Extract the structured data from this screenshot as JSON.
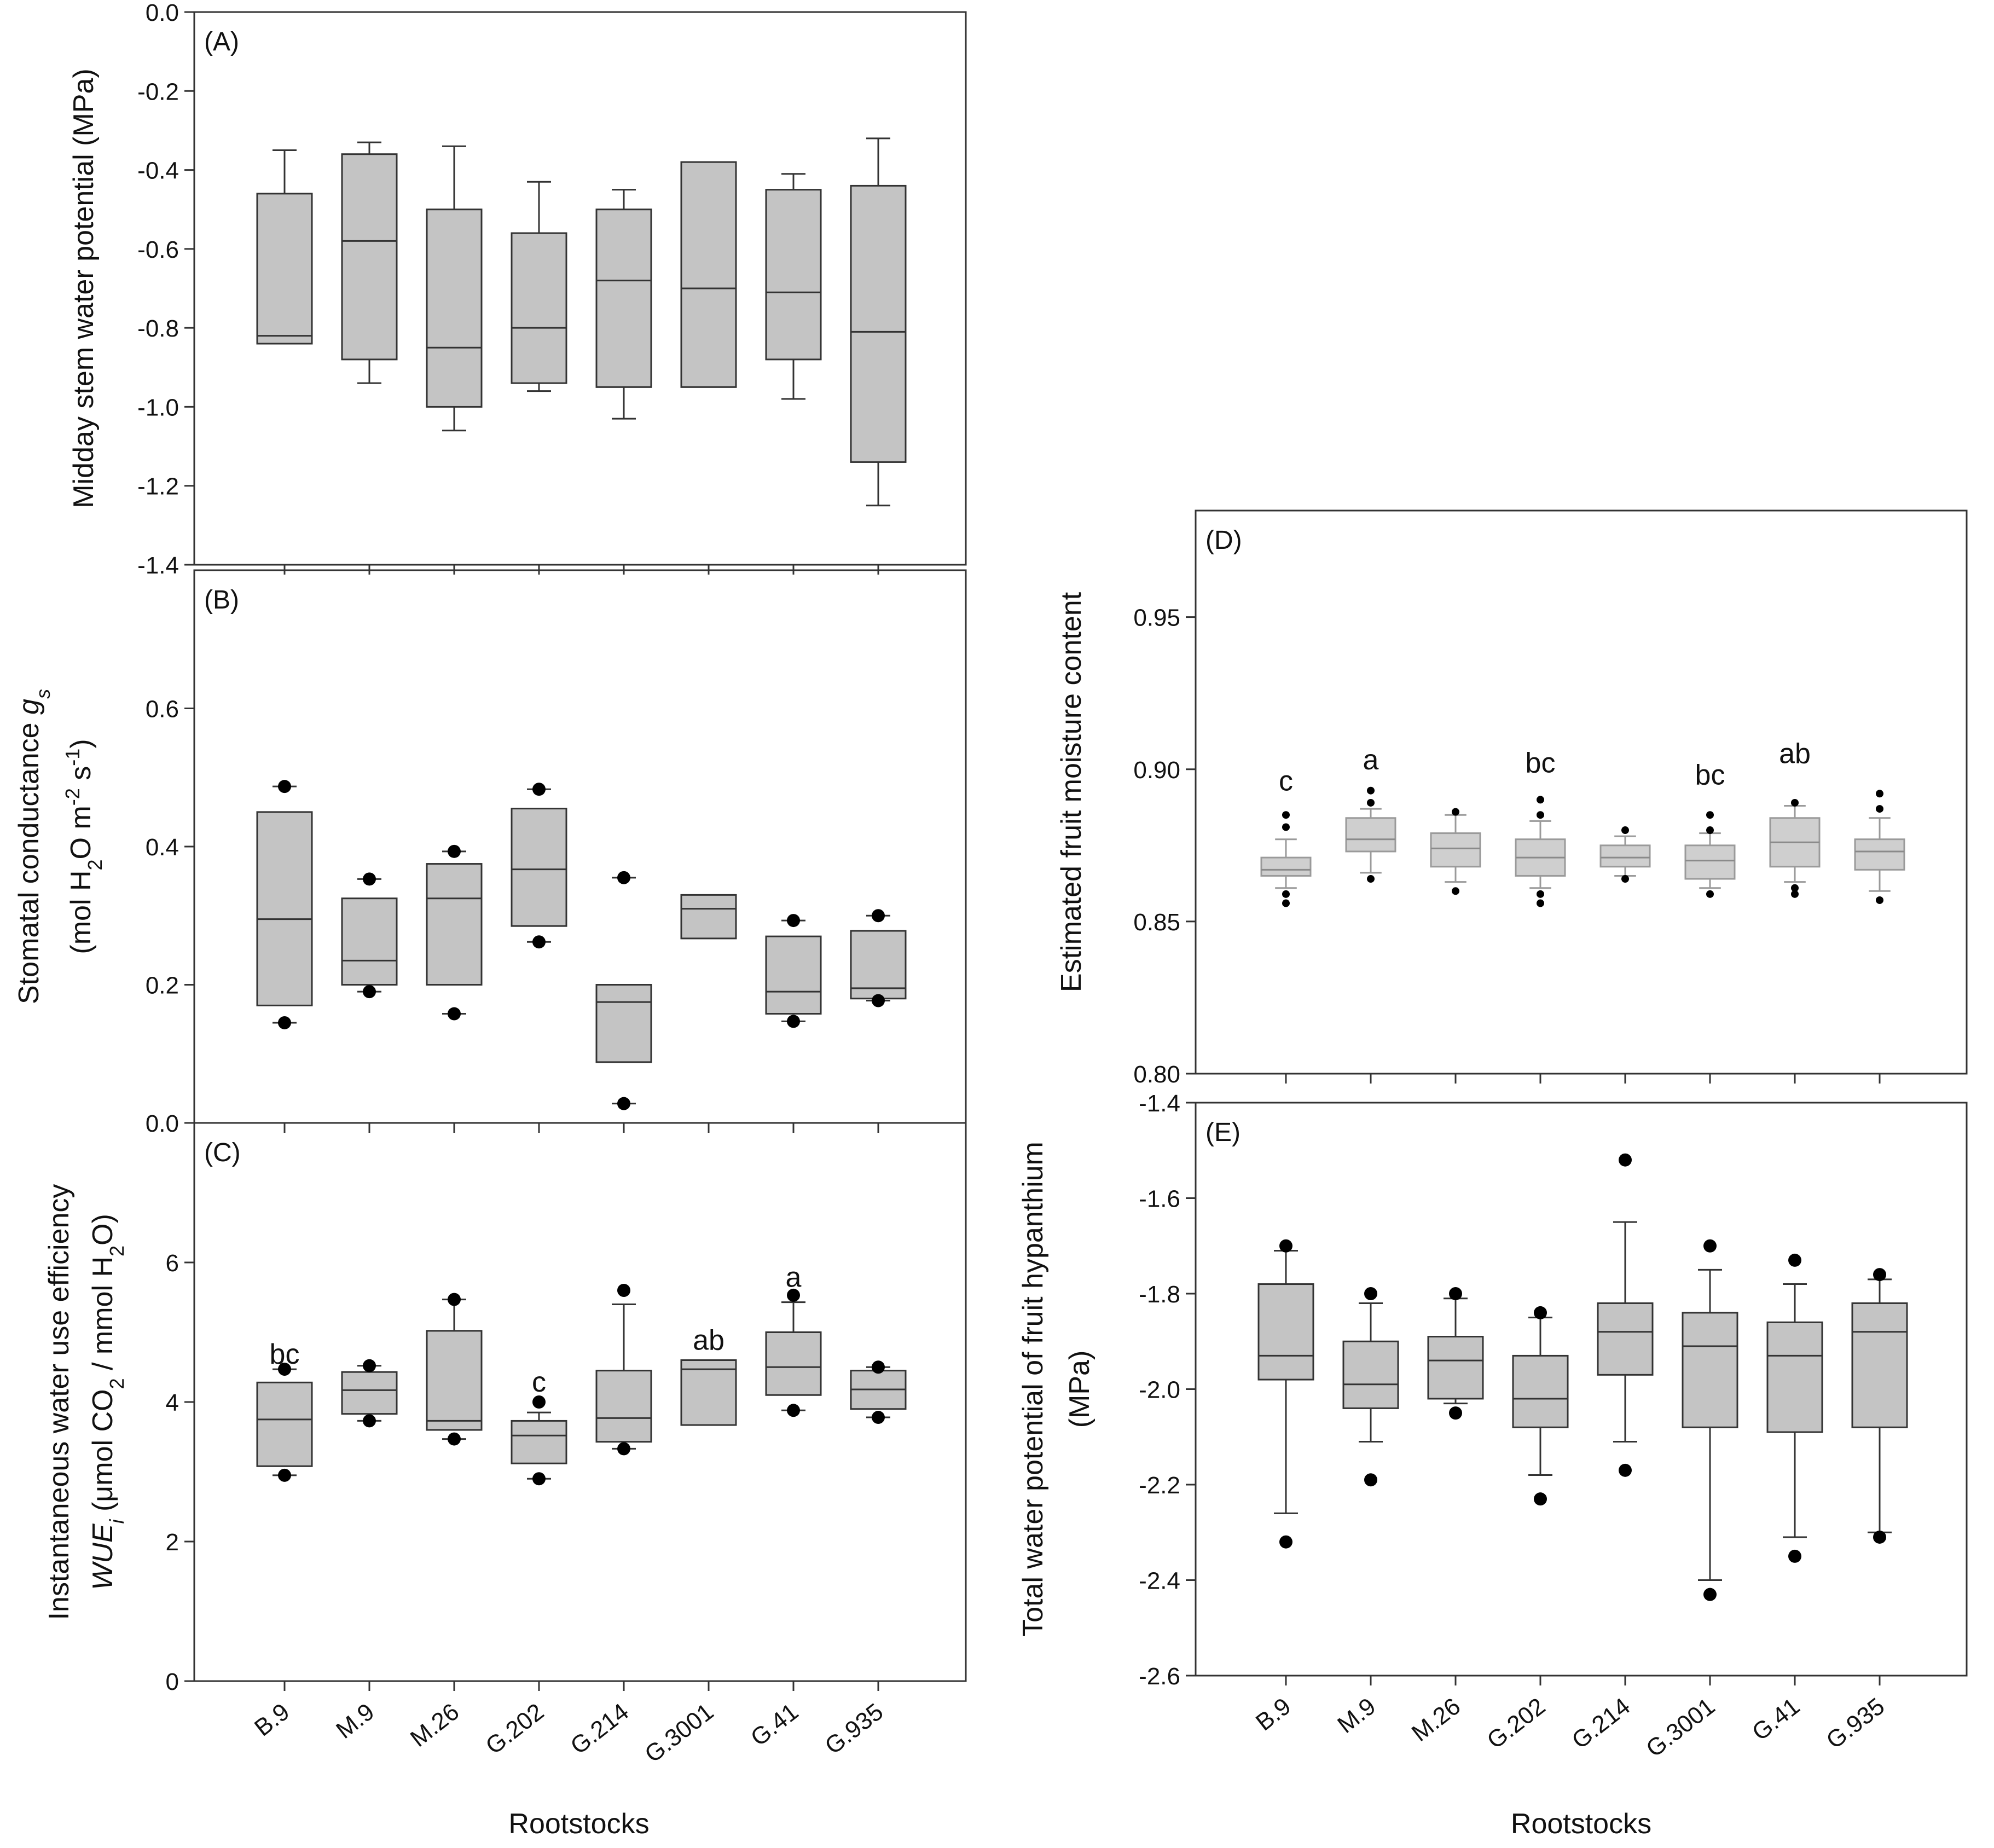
{
  "chart_data": [
    {
      "id": "A",
      "type": "box",
      "panel_label": "(A)",
      "ylabel": [
        "Midday stem water potential (MPa)"
      ],
      "xlabel": "",
      "ylim": [
        -1.4,
        0.0
      ],
      "yticks": [
        0.0,
        -0.2,
        -0.4,
        -0.6,
        -0.8,
        -1.0,
        -1.2,
        -1.4
      ],
      "tick_labels": [
        "0.0",
        "-0.2",
        "-0.4",
        "-0.6",
        "-0.8",
        "-1.0",
        "-1.2",
        "-1.4"
      ],
      "categories": [
        "B.9",
        "M.9",
        "M.26",
        "G.202",
        "G.214",
        "G.3001",
        "G.41",
        "G.935"
      ],
      "boxes": [
        {
          "whislo": -0.84,
          "q1": -0.84,
          "med": -0.82,
          "q3": -0.46,
          "whishi": -0.35,
          "fliers": []
        },
        {
          "whislo": -0.94,
          "q1": -0.88,
          "med": -0.58,
          "q3": -0.36,
          "whishi": -0.33,
          "fliers": []
        },
        {
          "whislo": -1.06,
          "q1": -1.0,
          "med": -0.85,
          "q3": -0.5,
          "whishi": -0.34,
          "fliers": []
        },
        {
          "whislo": -0.96,
          "q1": -0.94,
          "med": -0.8,
          "q3": -0.56,
          "whishi": -0.43,
          "fliers": []
        },
        {
          "whislo": -1.03,
          "q1": -0.95,
          "med": -0.68,
          "q3": -0.5,
          "whishi": -0.45,
          "fliers": []
        },
        {
          "whislo": -0.95,
          "q1": -0.95,
          "med": -0.7,
          "q3": -0.38,
          "whishi": -0.38,
          "fliers": []
        },
        {
          "whislo": -0.98,
          "q1": -0.88,
          "med": -0.71,
          "q3": -0.45,
          "whishi": -0.41,
          "fliers": []
        },
        {
          "whislo": -1.25,
          "q1": -1.14,
          "med": -0.81,
          "q3": -0.44,
          "whishi": -0.32,
          "fliers": []
        }
      ],
      "letters": []
    },
    {
      "id": "B",
      "type": "box",
      "panel_label": "(B)",
      "ylabel": [
        "Stomatal conductance gs",
        "(mol H2O m-2 s-1)"
      ],
      "xlabel": "",
      "ylim": [
        0.0,
        0.8
      ],
      "yticks": [
        0.0,
        0.2,
        0.4,
        0.6
      ],
      "tick_labels": [
        "0.0",
        "0.2",
        "0.4",
        "0.6"
      ],
      "categories": [
        "B.9",
        "M.9",
        "M.26",
        "G.202",
        "G.214",
        "G.3001",
        "G.41",
        "G.935"
      ],
      "boxes": [
        {
          "whislo": 0.17,
          "q1": 0.17,
          "med": 0.295,
          "q3": 0.45,
          "whishi": 0.45,
          "fliers": [
            0.145,
            0.487
          ]
        },
        {
          "whislo": 0.2,
          "q1": 0.2,
          "med": 0.235,
          "q3": 0.325,
          "whishi": 0.325,
          "fliers": [
            0.19,
            0.353
          ]
        },
        {
          "whislo": 0.2,
          "q1": 0.2,
          "med": 0.325,
          "q3": 0.375,
          "whishi": 0.375,
          "fliers": [
            0.158,
            0.393
          ]
        },
        {
          "whislo": 0.285,
          "q1": 0.285,
          "med": 0.367,
          "q3": 0.455,
          "whishi": 0.455,
          "fliers": [
            0.262,
            0.483
          ]
        },
        {
          "whislo": 0.088,
          "q1": 0.088,
          "med": 0.175,
          "q3": 0.2,
          "whishi": 0.2,
          "fliers": [
            0.028,
            0.355
          ]
        },
        {
          "whislo": 0.267,
          "q1": 0.267,
          "med": 0.31,
          "q3": 0.33,
          "whishi": 0.33,
          "fliers": []
        },
        {
          "whislo": 0.158,
          "q1": 0.158,
          "med": 0.19,
          "q3": 0.27,
          "whishi": 0.27,
          "fliers": [
            0.147,
            0.293
          ]
        },
        {
          "whislo": 0.18,
          "q1": 0.18,
          "med": 0.195,
          "q3": 0.278,
          "whishi": 0.278,
          "fliers": [
            0.177,
            0.3
          ]
        }
      ],
      "letters": []
    },
    {
      "id": "C",
      "type": "box",
      "panel_label": "(C)",
      "ylabel": [
        "Instantaneous water use efficiency",
        "WUEi (μmol CO2 / mmol H2O)"
      ],
      "xlabel": "",
      "ylim": [
        0,
        8
      ],
      "yticks": [
        0,
        2,
        4,
        6
      ],
      "tick_labels": [
        "0",
        "2",
        "4",
        "6"
      ],
      "categories": [
        "B.9",
        "M.9",
        "M.26",
        "G.202",
        "G.214",
        "G.3001",
        "G.41",
        "G.935"
      ],
      "boxes": [
        {
          "whislo": 3.08,
          "q1": 3.08,
          "med": 3.75,
          "q3": 4.28,
          "whishi": 4.28,
          "fliers": [
            2.95,
            4.47
          ]
        },
        {
          "whislo": 3.83,
          "q1": 3.83,
          "med": 4.17,
          "q3": 4.43,
          "whishi": 4.43,
          "fliers": [
            3.73,
            4.52
          ]
        },
        {
          "whislo": 3.6,
          "q1": 3.6,
          "med": 3.73,
          "q3": 5.02,
          "whishi": 5.47,
          "fliers": [
            3.47,
            5.47
          ]
        },
        {
          "whislo": 3.12,
          "q1": 3.12,
          "med": 3.52,
          "q3": 3.73,
          "whishi": 3.85,
          "fliers": [
            2.9,
            4.0
          ]
        },
        {
          "whislo": 3.43,
          "q1": 3.43,
          "med": 3.77,
          "q3": 4.45,
          "whishi": 5.4,
          "fliers": [
            3.33,
            5.6
          ]
        },
        {
          "whislo": 3.67,
          "q1": 3.67,
          "med": 4.47,
          "q3": 4.6,
          "whishi": 4.6,
          "fliers": []
        },
        {
          "whislo": 4.1,
          "q1": 4.1,
          "med": 4.5,
          "q3": 5.0,
          "whishi": 5.43,
          "fliers": [
            3.88,
            5.53
          ]
        },
        {
          "whislo": 3.9,
          "q1": 3.9,
          "med": 4.18,
          "q3": 4.45,
          "whishi": 4.45,
          "fliers": [
            3.78,
            4.5
          ]
        }
      ],
      "letters": [
        {
          "category": "B.9",
          "text": "bc",
          "value": 4.55
        },
        {
          "category": "G.202",
          "text": "c",
          "value": 4.15
        },
        {
          "category": "G.3001",
          "text": "ab",
          "value": 4.75
        },
        {
          "category": "G.41",
          "text": "a",
          "value": 5.65
        }
      ],
      "xlabel_bottom": "Rootstocks"
    },
    {
      "id": "D",
      "type": "box",
      "panel_label": "(D)",
      "ylabel": [
        "Estimated fruit moisture content"
      ],
      "xlabel": "",
      "ylim": [
        0.8,
        0.985
      ],
      "yticks": [
        0.8,
        0.85,
        0.9,
        0.95
      ],
      "tick_labels": [
        "0.80",
        "0.85",
        "0.90",
        "0.95"
      ],
      "categories": [
        "B.9",
        "M.9",
        "M.26",
        "G.202",
        "G.214",
        "G.3001",
        "G.41",
        "G.935"
      ],
      "boxes": [
        {
          "whislo": 0.861,
          "q1": 0.865,
          "med": 0.867,
          "q3": 0.871,
          "whishi": 0.877,
          "fliers": [
            0.856,
            0.859,
            0.881,
            0.885
          ]
        },
        {
          "whislo": 0.866,
          "q1": 0.873,
          "med": 0.877,
          "q3": 0.884,
          "whishi": 0.887,
          "fliers": [
            0.864,
            0.889,
            0.893
          ]
        },
        {
          "whislo": 0.863,
          "q1": 0.868,
          "med": 0.874,
          "q3": 0.879,
          "whishi": 0.885,
          "fliers": [
            0.86,
            0.886
          ]
        },
        {
          "whislo": 0.861,
          "q1": 0.865,
          "med": 0.871,
          "q3": 0.877,
          "whishi": 0.883,
          "fliers": [
            0.856,
            0.859,
            0.885,
            0.89
          ]
        },
        {
          "whislo": 0.865,
          "q1": 0.868,
          "med": 0.871,
          "q3": 0.875,
          "whishi": 0.878,
          "fliers": [
            0.864,
            0.88
          ]
        },
        {
          "whislo": 0.861,
          "q1": 0.864,
          "med": 0.87,
          "q3": 0.875,
          "whishi": 0.879,
          "fliers": [
            0.859,
            0.88,
            0.885
          ]
        },
        {
          "whislo": 0.863,
          "q1": 0.868,
          "med": 0.876,
          "q3": 0.884,
          "whishi": 0.888,
          "fliers": [
            0.859,
            0.861,
            0.889
          ]
        },
        {
          "whislo": 0.86,
          "q1": 0.867,
          "med": 0.873,
          "q3": 0.877,
          "whishi": 0.884,
          "fliers": [
            0.857,
            0.887,
            0.892
          ]
        }
      ],
      "letters": [
        {
          "category": "B.9",
          "text": "c",
          "value": 0.893
        },
        {
          "category": "M.9",
          "text": "a",
          "value": 0.9
        },
        {
          "category": "G.202",
          "text": "bc",
          "value": 0.899
        },
        {
          "category": "G.3001",
          "text": "bc",
          "value": 0.895
        },
        {
          "category": "G.41",
          "text": "ab",
          "value": 0.902
        }
      ]
    },
    {
      "id": "E",
      "type": "box",
      "panel_label": "(E)",
      "ylabel": [
        "Total water potential of fruit hypanthium",
        "(MPa)"
      ],
      "xlabel": "Rootstocks",
      "ylim": [
        -2.6,
        -1.4
      ],
      "yticks": [
        -1.4,
        -1.6,
        -1.8,
        -2.0,
        -2.2,
        -2.4,
        -2.6
      ],
      "tick_labels": [
        "-1.4",
        "-1.6",
        "-1.8",
        "-2.0",
        "-2.2",
        "-2.4",
        "-2.6"
      ],
      "categories": [
        "B.9",
        "M.9",
        "M.26",
        "G.202",
        "G.214",
        "G.3001",
        "G.41",
        "G.935"
      ],
      "boxes": [
        {
          "whislo": -2.26,
          "q1": -1.98,
          "med": -1.93,
          "q3": -1.78,
          "whishi": -1.71,
          "fliers": [
            -2.32,
            -1.7
          ]
        },
        {
          "whislo": -2.11,
          "q1": -2.04,
          "med": -1.99,
          "q3": -1.9,
          "whishi": -1.82,
          "fliers": [
            -2.19,
            -1.8
          ]
        },
        {
          "whislo": -2.03,
          "q1": -2.02,
          "med": -1.94,
          "q3": -1.89,
          "whishi": -1.81,
          "fliers": [
            -2.05,
            -1.8
          ]
        },
        {
          "whislo": -2.18,
          "q1": -2.08,
          "med": -2.02,
          "q3": -1.93,
          "whishi": -1.85,
          "fliers": [
            -2.23,
            -1.84
          ]
        },
        {
          "whislo": -2.11,
          "q1": -1.97,
          "med": -1.88,
          "q3": -1.82,
          "whishi": -1.65,
          "fliers": [
            -2.17,
            -1.52
          ]
        },
        {
          "whislo": -2.4,
          "q1": -2.08,
          "med": -1.91,
          "q3": -1.84,
          "whishi": -1.75,
          "fliers": [
            -2.43,
            -1.7
          ]
        },
        {
          "whislo": -2.31,
          "q1": -2.09,
          "med": -1.93,
          "q3": -1.86,
          "whishi": -1.78,
          "fliers": [
            -2.35,
            -1.73
          ]
        },
        {
          "whislo": -2.3,
          "q1": -2.08,
          "med": -1.88,
          "q3": -1.82,
          "whishi": -1.77,
          "fliers": [
            -2.31,
            -1.76
          ]
        }
      ],
      "letters": []
    }
  ]
}
